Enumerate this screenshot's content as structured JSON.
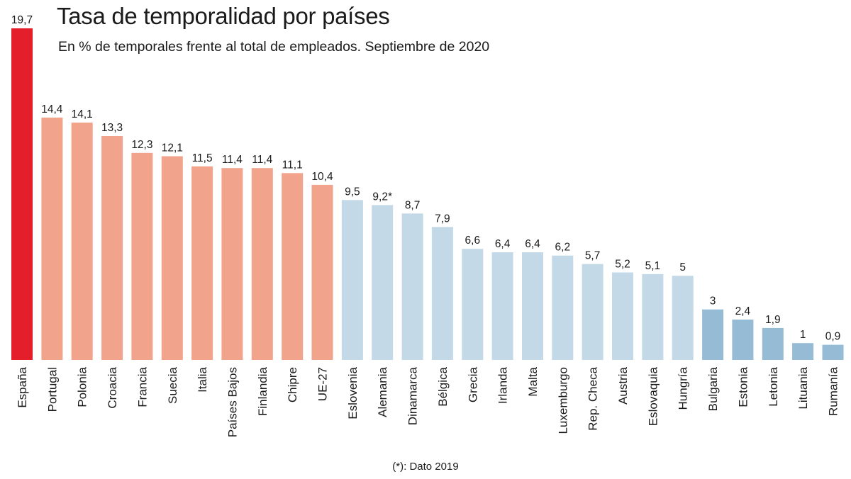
{
  "title": "Tasa de temporalidad por países",
  "subtitle": "En % de temporales frente al total de empleados. Septiembre de 2020",
  "footnote": "(*): Dato 2019",
  "colors": {
    "highlight": "#e41e2b",
    "above_avg": "#f2a38c",
    "below_avg": "#c4d9e7",
    "lowest": "#96bcd5"
  },
  "chart_data": {
    "type": "bar",
    "ylim": [
      0,
      19.7
    ],
    "categories": [
      "España",
      "Portugal",
      "Polonia",
      "Croacia",
      "Francia",
      "Suecia",
      "Italia",
      "Países Bajos",
      "Finlandia",
      "Chipre",
      "UE-27",
      "Eslovenia",
      "Alemania",
      "Dinamarca",
      "Bélgica",
      "Grecia",
      "Irlanda",
      "Malta",
      "Luxemburgo",
      "Rep. Checa",
      "Austria",
      "Eslovaquia",
      "Hungría",
      "Bulgaria",
      "Estonia",
      "Letonia",
      "Lituania",
      "Rumanía"
    ],
    "values": [
      19.7,
      14.4,
      14.1,
      13.3,
      12.3,
      12.1,
      11.5,
      11.4,
      11.4,
      11.1,
      10.4,
      9.5,
      9.2,
      8.7,
      7.9,
      6.6,
      6.4,
      6.4,
      6.2,
      5.7,
      5.2,
      5.1,
      5,
      3,
      2.4,
      1.9,
      1,
      0.9
    ],
    "value_labels": [
      "19,7",
      "14,4",
      "14,1",
      "13,3",
      "12,3",
      "12,1",
      "11,5",
      "11,4",
      "11,4",
      "11,1",
      "10,4",
      "9,5",
      "9,2*",
      "8,7",
      "7,9",
      "6,6",
      "6,4",
      "6,4",
      "6,2",
      "5,7",
      "5,2",
      "5,1",
      "5",
      "3",
      "2,4",
      "1,9",
      "1",
      "0,9"
    ],
    "color_groups": [
      "highlight",
      "above_avg",
      "above_avg",
      "above_avg",
      "above_avg",
      "above_avg",
      "above_avg",
      "above_avg",
      "above_avg",
      "above_avg",
      "above_avg",
      "below_avg",
      "below_avg",
      "below_avg",
      "below_avg",
      "below_avg",
      "below_avg",
      "below_avg",
      "below_avg",
      "below_avg",
      "below_avg",
      "below_avg",
      "below_avg",
      "lowest",
      "lowest",
      "lowest",
      "lowest",
      "lowest"
    ],
    "grid": false,
    "legend": "none"
  }
}
